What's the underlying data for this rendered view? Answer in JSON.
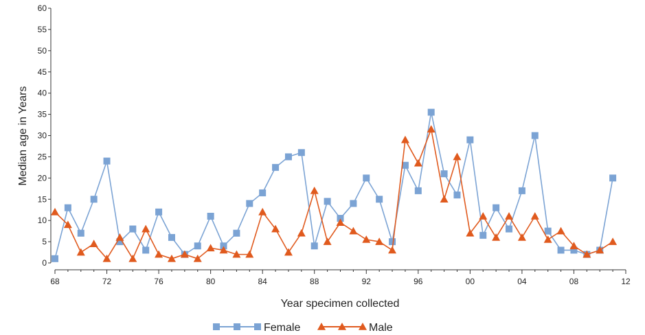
{
  "chart_data": {
    "type": "line",
    "xlabel": "Year specimen collected",
    "ylabel": "Median age in Years",
    "xlim": [
      1968,
      2012
    ],
    "ylim": [
      0,
      60
    ],
    "x_ticks": [
      {
        "value": 1968,
        "label": "68"
      },
      {
        "value": 1972,
        "label": "72"
      },
      {
        "value": 1976,
        "label": "76"
      },
      {
        "value": 1980,
        "label": "80"
      },
      {
        "value": 1984,
        "label": "84"
      },
      {
        "value": 1988,
        "label": "88"
      },
      {
        "value": 1992,
        "label": "92"
      },
      {
        "value": 1996,
        "label": "96"
      },
      {
        "value": 2000,
        "label": "00"
      },
      {
        "value": 2004,
        "label": "04"
      },
      {
        "value": 2008,
        "label": "08"
      },
      {
        "value": 2012,
        "label": "12"
      }
    ],
    "y_ticks": [
      0,
      5,
      10,
      15,
      20,
      25,
      30,
      35,
      40,
      45,
      50,
      55,
      60
    ],
    "grid": false,
    "legend_position": "bottom",
    "series": [
      {
        "name": "Female",
        "color": "#7ba3d4",
        "marker": "square",
        "x": [
          1968,
          1969,
          1970,
          1971,
          1972,
          1973,
          1974,
          1975,
          1976,
          1977,
          1978,
          1979,
          1980,
          1981,
          1982,
          1983,
          1984,
          1985,
          1986,
          1987,
          1988,
          1989,
          1990,
          1991,
          1992,
          1993,
          1994,
          1995,
          1996,
          1997,
          1998,
          1999,
          2000,
          2001,
          2002,
          2003,
          2004,
          2005,
          2006,
          2007,
          2008,
          2009,
          2010,
          2011
        ],
        "y": [
          1,
          13,
          7,
          15,
          24,
          5,
          8,
          3,
          12,
          6,
          2,
          4,
          11,
          4,
          7,
          14,
          16.5,
          22.5,
          25,
          26,
          4,
          14.5,
          10.5,
          14,
          20,
          15,
          5,
          23,
          17,
          35.5,
          21,
          16,
          29,
          6.5,
          13,
          8,
          17,
          30,
          7.5,
          3,
          3,
          2,
          3,
          20
        ]
      },
      {
        "name": "Male",
        "color": "#e05a1e",
        "marker": "triangle",
        "x": [
          1968,
          1969,
          1970,
          1971,
          1972,
          1973,
          1974,
          1975,
          1976,
          1977,
          1978,
          1979,
          1980,
          1981,
          1982,
          1983,
          1984,
          1985,
          1986,
          1987,
          1988,
          1989,
          1990,
          1991,
          1992,
          1993,
          1994,
          1995,
          1996,
          1997,
          1998,
          1999,
          2000,
          2001,
          2002,
          2003,
          2004,
          2005,
          2006,
          2007,
          2008,
          2009,
          2010,
          2011
        ],
        "y": [
          12,
          9,
          2.5,
          4.5,
          1,
          6,
          1,
          8,
          2,
          1,
          2,
          1,
          3.5,
          3,
          2,
          2,
          12,
          8,
          2.5,
          7,
          17,
          5,
          9.5,
          7.5,
          5.5,
          5,
          3,
          29,
          23.5,
          31.5,
          15,
          25,
          7,
          11,
          6,
          11,
          6,
          11,
          5.5,
          7.5,
          4,
          2,
          3,
          5
        ]
      }
    ]
  }
}
